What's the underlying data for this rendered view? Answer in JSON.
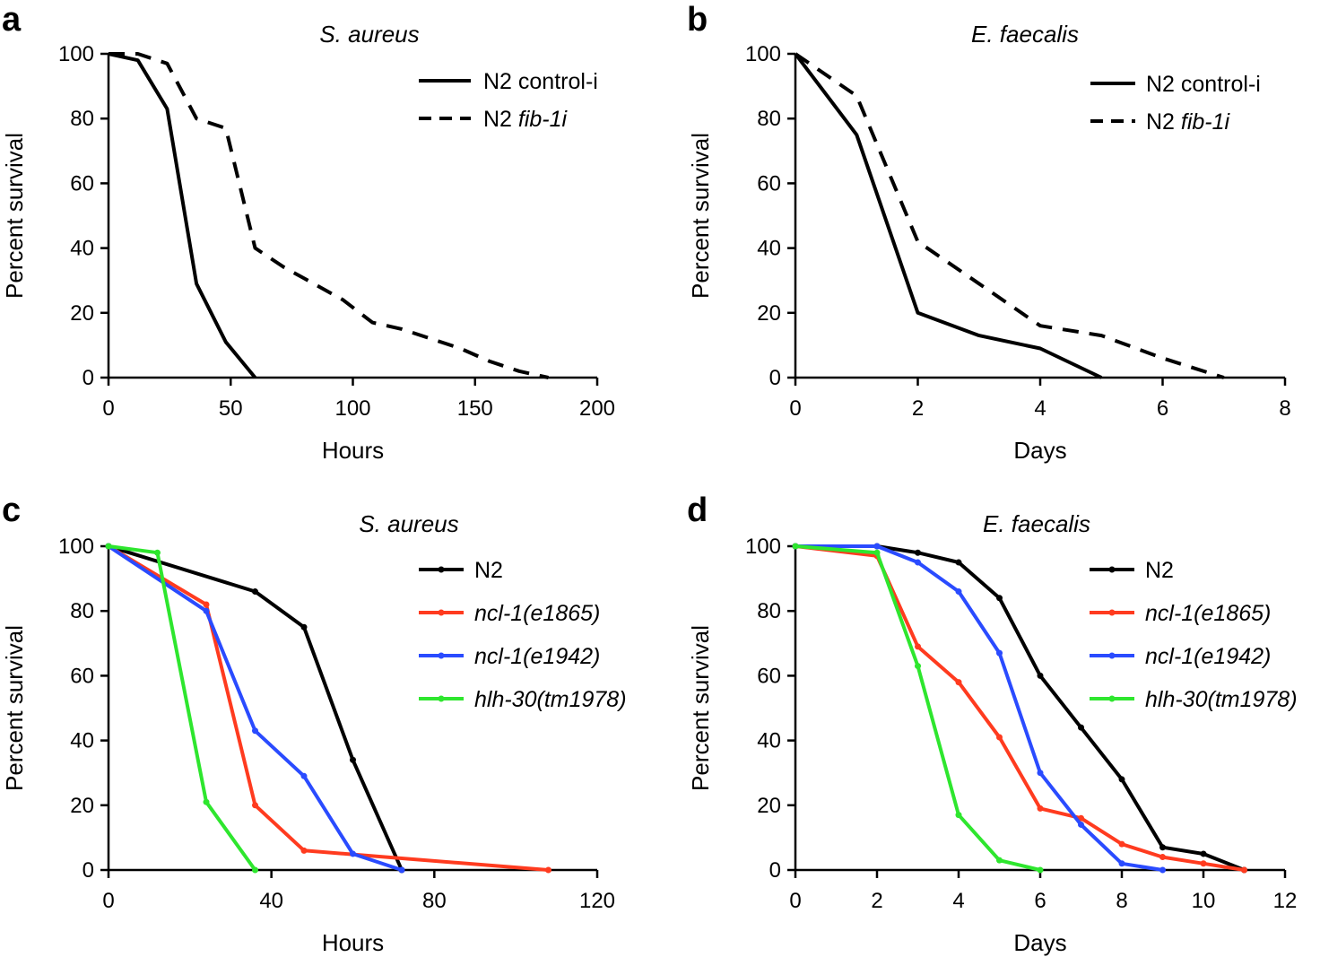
{
  "chart_data": [
    {
      "type": "line",
      "panel": "a",
      "title": "S. aureus",
      "xlabel": "Hours",
      "ylabel": "Percent survival",
      "xlim": [
        0,
        200
      ],
      "ylim": [
        0,
        100
      ],
      "xticks": [
        "0",
        "50",
        "100",
        "150",
        "200"
      ],
      "yticks": [
        "0",
        "20",
        "40",
        "60",
        "80",
        "100"
      ],
      "legend_position": "top-right",
      "series": [
        {
          "name": "N2 control-i",
          "legend_plain": "N2 control-i",
          "legend_italic": "",
          "color": "#000000",
          "dash": "solid",
          "x": [
            0,
            12,
            24,
            36,
            48,
            60
          ],
          "y": [
            100,
            98,
            83,
            29,
            11,
            0
          ]
        },
        {
          "name": "N2 fib-1i",
          "legend_plain": "N2 ",
          "legend_italic": "fib-1i",
          "color": "#000000",
          "dash": "dashed",
          "x": [
            0,
            12,
            24,
            36,
            48,
            60,
            72,
            84,
            96,
            108,
            120,
            132,
            144,
            156,
            168,
            180
          ],
          "y": [
            100,
            100,
            97,
            80,
            77,
            40,
            34,
            29,
            24,
            17,
            15,
            12,
            9,
            5,
            2,
            0
          ]
        }
      ]
    },
    {
      "type": "line",
      "panel": "b",
      "title": "E. faecalis",
      "xlabel": "Days",
      "ylabel": "Percent survival",
      "xlim": [
        0,
        8
      ],
      "ylim": [
        0,
        100
      ],
      "xticks": [
        "0",
        "2",
        "4",
        "6",
        "8"
      ],
      "yticks": [
        "0",
        "20",
        "40",
        "60",
        "80",
        "100"
      ],
      "legend_position": "top-right",
      "series": [
        {
          "name": "N2 control-i",
          "legend_plain": "N2 control-i",
          "legend_italic": "",
          "color": "#000000",
          "dash": "solid",
          "x": [
            0,
            1,
            2,
            3,
            4,
            5
          ],
          "y": [
            100,
            75,
            20,
            13,
            9,
            0
          ]
        },
        {
          "name": "N2 fib-1i",
          "legend_plain": "N2 ",
          "legend_italic": "fib-1i",
          "color": "#000000",
          "dash": "dashed",
          "x": [
            0,
            1,
            2,
            3,
            4,
            5,
            6,
            7
          ],
          "y": [
            100,
            87,
            42,
            29,
            16,
            13,
            6,
            0
          ]
        }
      ]
    },
    {
      "type": "line",
      "panel": "c",
      "title": "S. aureus",
      "xlabel": "Hours",
      "ylabel": "Percent survival",
      "xlim": [
        0,
        120
      ],
      "ylim": [
        0,
        100
      ],
      "xticks": [
        "0",
        "40",
        "80",
        "120"
      ],
      "yticks": [
        "0",
        "20",
        "40",
        "60",
        "80",
        "100"
      ],
      "legend_position": "top-right",
      "series": [
        {
          "name": "N2",
          "legend_plain": "N2",
          "legend_italic": "",
          "color": "#000000",
          "dash": "solid",
          "markers": true,
          "x": [
            0,
            36,
            48,
            60,
            72
          ],
          "y": [
            100,
            86,
            75,
            34,
            0
          ]
        },
        {
          "name": "ncl-1(e1865)",
          "legend_plain": "",
          "legend_italic": "ncl-1(e1865)",
          "color": "#ff3b1f",
          "dash": "solid",
          "markers": true,
          "x": [
            0,
            24,
            36,
            48,
            108
          ],
          "y": [
            100,
            82,
            20,
            6,
            0
          ]
        },
        {
          "name": "ncl-1(e1942)",
          "legend_plain": "",
          "legend_italic": "ncl-1(e1942)",
          "color": "#2a4bff",
          "dash": "solid",
          "markers": true,
          "x": [
            0,
            24,
            36,
            48,
            60,
            72
          ],
          "y": [
            100,
            80,
            43,
            29,
            5,
            0
          ]
        },
        {
          "name": "hlh-30(tm1978)",
          "legend_plain": "",
          "legend_italic": "hlh-30(tm1978)",
          "color": "#2ee62e",
          "dash": "solid",
          "markers": true,
          "x": [
            0,
            12,
            24,
            36
          ],
          "y": [
            100,
            98,
            21,
            0
          ]
        }
      ]
    },
    {
      "type": "line",
      "panel": "d",
      "title": "E. faecalis",
      "xlabel": "Days",
      "ylabel": "Percent survival",
      "xlim": [
        0,
        12
      ],
      "ylim": [
        0,
        100
      ],
      "xticks": [
        "0",
        "2",
        "4",
        "6",
        "8",
        "10",
        "12"
      ],
      "yticks": [
        "0",
        "20",
        "40",
        "60",
        "80",
        "100"
      ],
      "legend_position": "top-right",
      "series": [
        {
          "name": "N2",
          "legend_plain": "N2",
          "legend_italic": "",
          "color": "#000000",
          "dash": "solid",
          "markers": true,
          "x": [
            0,
            2,
            3,
            4,
            5,
            6,
            7,
            8,
            9,
            10,
            11
          ],
          "y": [
            100,
            100,
            98,
            95,
            84,
            60,
            44,
            28,
            7,
            5,
            0
          ]
        },
        {
          "name": "ncl-1(e1865)",
          "legend_plain": "",
          "legend_italic": "ncl-1(e1865)",
          "color": "#ff3b1f",
          "dash": "solid",
          "markers": true,
          "x": [
            0,
            2,
            3,
            4,
            5,
            6,
            7,
            8,
            9,
            10,
            11
          ],
          "y": [
            100,
            97,
            69,
            58,
            41,
            19,
            16,
            8,
            4,
            2,
            0
          ]
        },
        {
          "name": "ncl-1(e1942)",
          "legend_plain": "",
          "legend_italic": "ncl-1(e1942)",
          "color": "#2a4bff",
          "dash": "solid",
          "markers": true,
          "x": [
            0,
            2,
            3,
            4,
            5,
            6,
            7,
            8,
            9
          ],
          "y": [
            100,
            100,
            95,
            86,
            67,
            30,
            14,
            2,
            0
          ]
        },
        {
          "name": "hlh-30(tm1978)",
          "legend_plain": "",
          "legend_italic": "hlh-30(tm1978)",
          "color": "#2ee62e",
          "dash": "solid",
          "markers": true,
          "x": [
            0,
            2,
            3,
            4,
            5,
            6
          ],
          "y": [
            100,
            98,
            63,
            17,
            3,
            0
          ]
        }
      ]
    }
  ]
}
